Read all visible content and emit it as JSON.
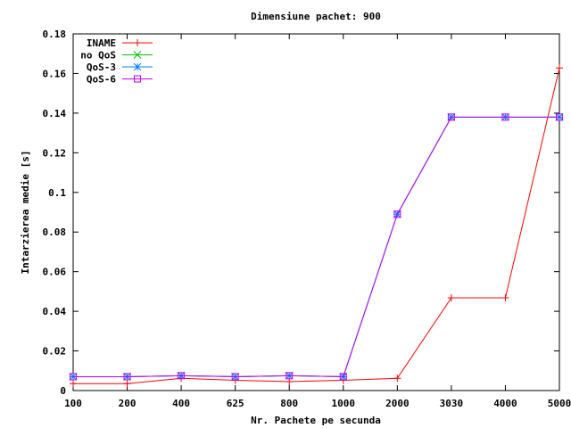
{
  "chart_data": {
    "type": "line",
    "title": "Dimensiune pachet: 900",
    "xlabel": "Nr. Pachete pe secunda",
    "ylabel": "Intarzierea medie [s]",
    "categories": [
      "100",
      "200",
      "400",
      "625",
      "800",
      "1000",
      "2000",
      "3030",
      "4000",
      "5000"
    ],
    "ylim": [
      0,
      0.18
    ],
    "yticks": [
      "0",
      "0.02",
      "0.04",
      "0.06",
      "0.08",
      "0.1",
      "0.12",
      "0.14",
      "0.16",
      "0.18"
    ],
    "grid": false,
    "legend_position": "top-left",
    "series": [
      {
        "name": "INAME",
        "color": "#ff0000",
        "marker": "plus",
        "values": [
          0.0035,
          0.0035,
          0.0062,
          0.0052,
          0.0045,
          0.0052,
          0.0062,
          0.0468,
          0.0468,
          0.1628
        ]
      },
      {
        "name": "no QoS",
        "color": "#00c000",
        "marker": "cross",
        "values": [
          0.007,
          0.007,
          0.0075,
          0.007,
          0.0075,
          0.007,
          0.089,
          0.138,
          0.138,
          0.138
        ]
      },
      {
        "name": "QoS-3",
        "color": "#0080ff",
        "marker": "star",
        "values": [
          0.007,
          0.007,
          0.0075,
          0.007,
          0.0075,
          0.007,
          0.089,
          0.138,
          0.138,
          0.138
        ]
      },
      {
        "name": "QoS-6",
        "color": "#c000ff",
        "marker": "square",
        "values": [
          0.007,
          0.007,
          0.0075,
          0.007,
          0.0075,
          0.007,
          0.089,
          0.138,
          0.138,
          0.138
        ]
      }
    ]
  }
}
